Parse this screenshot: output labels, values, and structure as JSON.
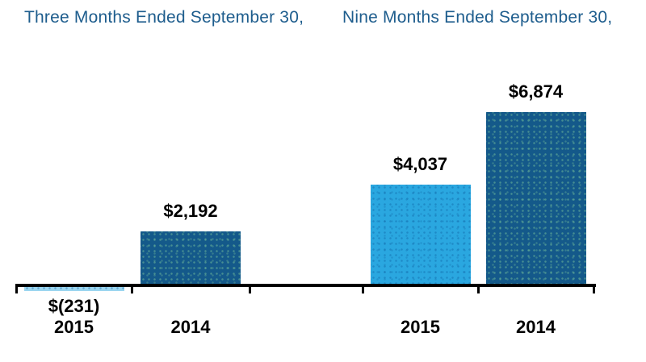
{
  "headers": [
    {
      "label": "Three Months Ended September 30,"
    },
    {
      "label": "Nine Months Ended September 30,"
    }
  ],
  "colors": {
    "header_text": "#1e5d8d",
    "bar_2014": "#14598a",
    "bar_2015": "#2aa7e0",
    "bar_2015_below_axis": "#9cd6f0",
    "axis": "#000000",
    "value_text": "#000000"
  },
  "chart_data": {
    "type": "bar",
    "title": "",
    "groups": [
      "Three Months Ended September 30,",
      "Nine Months Ended September 30,"
    ],
    "bars": [
      {
        "group": 0,
        "category": "2015",
        "value": -231,
        "label": "$(231)"
      },
      {
        "group": 0,
        "category": "2014",
        "value": 2192,
        "label": "$2,192"
      },
      {
        "group": 1,
        "category": "2015",
        "value": 4037,
        "label": "$4,037"
      },
      {
        "group": 1,
        "category": "2014",
        "value": 6874,
        "label": "$6,874"
      }
    ],
    "xlabel": "",
    "ylabel": "",
    "ylim": [
      -231,
      6874
    ],
    "grid": false,
    "legend": false,
    "axis_ticks": 6,
    "series_colors": {
      "2015": "#2aa7e0",
      "2014": "#14598a"
    }
  }
}
